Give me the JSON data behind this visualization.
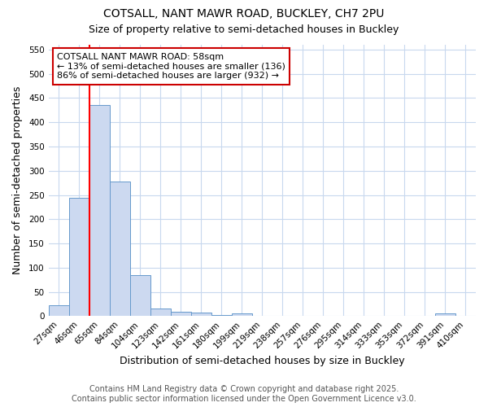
{
  "title_line1": "COTSALL, NANT MAWR ROAD, BUCKLEY, CH7 2PU",
  "title_line2": "Size of property relative to semi-detached houses in Buckley",
  "xlabel": "Distribution of semi-detached houses by size in Buckley",
  "ylabel": "Number of semi-detached properties",
  "bar_labels": [
    "27sqm",
    "46sqm",
    "65sqm",
    "84sqm",
    "104sqm",
    "123sqm",
    "142sqm",
    "161sqm",
    "180sqm",
    "199sqm",
    "219sqm",
    "238sqm",
    "257sqm",
    "276sqm",
    "295sqm",
    "314sqm",
    "333sqm",
    "353sqm",
    "372sqm",
    "391sqm",
    "410sqm"
  ],
  "bar_values": [
    22,
    245,
    435,
    278,
    85,
    15,
    9,
    8,
    3,
    5,
    0,
    0,
    0,
    0,
    0,
    0,
    0,
    0,
    0,
    5,
    0
  ],
  "bar_color": "#ccd9f0",
  "bar_edge_color": "#6699cc",
  "red_line_x": 2.0,
  "annotation_text": "COTSALL NANT MAWR ROAD: 58sqm\n← 13% of semi-detached houses are smaller (136)\n86% of semi-detached houses are larger (932) →",
  "annotation_box_color": "#ffffff",
  "annotation_box_edge": "#cc0000",
  "ylim": [
    0,
    560
  ],
  "yticks": [
    0,
    50,
    100,
    150,
    200,
    250,
    300,
    350,
    400,
    450,
    500,
    550
  ],
  "footer_text": "Contains HM Land Registry data © Crown copyright and database right 2025.\nContains public sector information licensed under the Open Government Licence v3.0.",
  "background_color": "#ffffff",
  "plot_bg_color": "#ffffff",
  "grid_color": "#c8d8ee",
  "title_fontsize": 10,
  "subtitle_fontsize": 9,
  "axis_label_fontsize": 9,
  "tick_fontsize": 7.5,
  "annotation_fontsize": 8,
  "footer_fontsize": 7
}
